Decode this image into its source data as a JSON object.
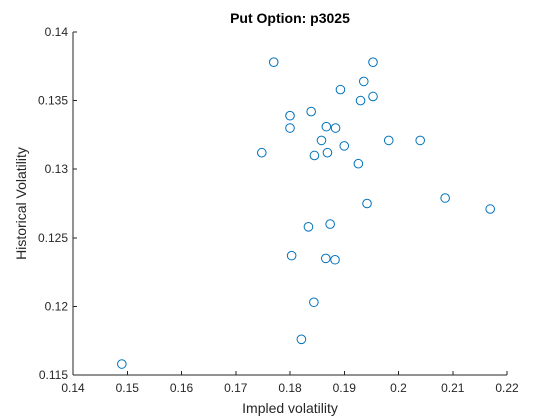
{
  "chart_data": {
    "type": "scatter",
    "title": "Put Option: p3025",
    "xlabel": "Impled volatility",
    "ylabel": "Historical Volatility",
    "xlim": [
      0.14,
      0.22
    ],
    "ylim": [
      0.115,
      0.14
    ],
    "xticks": [
      0.14,
      0.15,
      0.16,
      0.17,
      0.18,
      0.19,
      0.2,
      0.21,
      0.22
    ],
    "xtick_labels": [
      "0.14",
      "0.15",
      "0.16",
      "0.17",
      "0.18",
      "0.19",
      "0.2",
      "0.21",
      "0.22"
    ],
    "yticks": [
      0.115,
      0.12,
      0.125,
      0.13,
      0.135,
      0.14
    ],
    "ytick_labels": [
      "0.115",
      "0.12",
      "0.125",
      "0.13",
      "0.135",
      "0.14"
    ],
    "grid": false,
    "marker": "open-circle",
    "marker_color": "#0072BD",
    "axis_color": "#262626",
    "points": [
      {
        "x": 0.177,
        "y": 0.1378
      },
      {
        "x": 0.1953,
        "y": 0.1378
      },
      {
        "x": 0.1936,
        "y": 0.1364
      },
      {
        "x": 0.1893,
        "y": 0.1358
      },
      {
        "x": 0.1953,
        "y": 0.1353
      },
      {
        "x": 0.193,
        "y": 0.135
      },
      {
        "x": 0.1839,
        "y": 0.1342
      },
      {
        "x": 0.18,
        "y": 0.1339
      },
      {
        "x": 0.18,
        "y": 0.133
      },
      {
        "x": 0.1867,
        "y": 0.1331
      },
      {
        "x": 0.1884,
        "y": 0.133
      },
      {
        "x": 0.1858,
        "y": 0.1321
      },
      {
        "x": 0.1982,
        "y": 0.1321
      },
      {
        "x": 0.204,
        "y": 0.1321
      },
      {
        "x": 0.19,
        "y": 0.1317
      },
      {
        "x": 0.1748,
        "y": 0.1312
      },
      {
        "x": 0.1869,
        "y": 0.1312
      },
      {
        "x": 0.1845,
        "y": 0.131
      },
      {
        "x": 0.1926,
        "y": 0.1304
      },
      {
        "x": 0.2086,
        "y": 0.1279
      },
      {
        "x": 0.1942,
        "y": 0.1275
      },
      {
        "x": 0.2169,
        "y": 0.1271
      },
      {
        "x": 0.1874,
        "y": 0.126
      },
      {
        "x": 0.1834,
        "y": 0.1258
      },
      {
        "x": 0.1803,
        "y": 0.1237
      },
      {
        "x": 0.1866,
        "y": 0.1235
      },
      {
        "x": 0.1883,
        "y": 0.1234
      },
      {
        "x": 0.1844,
        "y": 0.1203
      },
      {
        "x": 0.1821,
        "y": 0.1176
      },
      {
        "x": 0.149,
        "y": 0.1158
      }
    ]
  }
}
